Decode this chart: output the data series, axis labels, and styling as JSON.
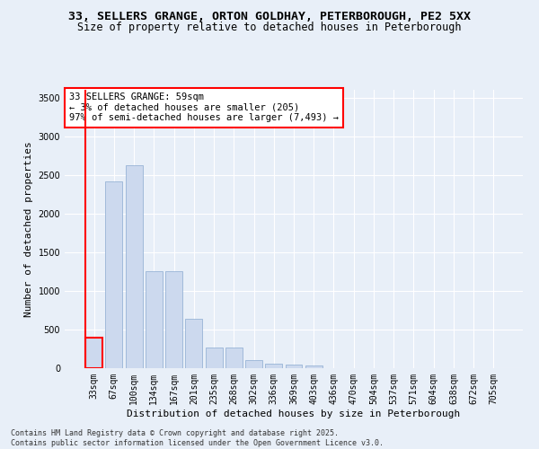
{
  "title_line1": "33, SELLERS GRANGE, ORTON GOLDHAY, PETERBOROUGH, PE2 5XX",
  "title_line2": "Size of property relative to detached houses in Peterborough",
  "xlabel": "Distribution of detached houses by size in Peterborough",
  "ylabel": "Number of detached properties",
  "categories": [
    "33sqm",
    "67sqm",
    "100sqm",
    "134sqm",
    "167sqm",
    "201sqm",
    "235sqm",
    "268sqm",
    "302sqm",
    "336sqm",
    "369sqm",
    "403sqm",
    "436sqm",
    "470sqm",
    "504sqm",
    "537sqm",
    "571sqm",
    "604sqm",
    "638sqm",
    "672sqm",
    "705sqm"
  ],
  "values": [
    390,
    2420,
    2620,
    1250,
    1250,
    640,
    270,
    270,
    100,
    55,
    50,
    30,
    0,
    0,
    0,
    0,
    0,
    0,
    0,
    0,
    0
  ],
  "bar_color": "#ccd9ee",
  "bar_edge_color": "#8aaad0",
  "highlight_bar_index": 0,
  "highlight_edge_color": "red",
  "vline_color": "red",
  "annotation_text": "33 SELLERS GRANGE: 59sqm\n← 3% of detached houses are smaller (205)\n97% of semi-detached houses are larger (7,493) →",
  "annotation_box_color": "white",
  "annotation_box_edge_color": "red",
  "ylim": [
    0,
    3600
  ],
  "yticks": [
    0,
    500,
    1000,
    1500,
    2000,
    2500,
    3000,
    3500
  ],
  "footer_line1": "Contains HM Land Registry data © Crown copyright and database right 2025.",
  "footer_line2": "Contains public sector information licensed under the Open Government Licence v3.0.",
  "bg_color": "#e8eff8",
  "grid_color": "white",
  "title_fontsize": 9.5,
  "subtitle_fontsize": 8.5,
  "axis_label_fontsize": 8,
  "tick_fontsize": 7,
  "annotation_fontsize": 7.5,
  "footer_fontsize": 6
}
